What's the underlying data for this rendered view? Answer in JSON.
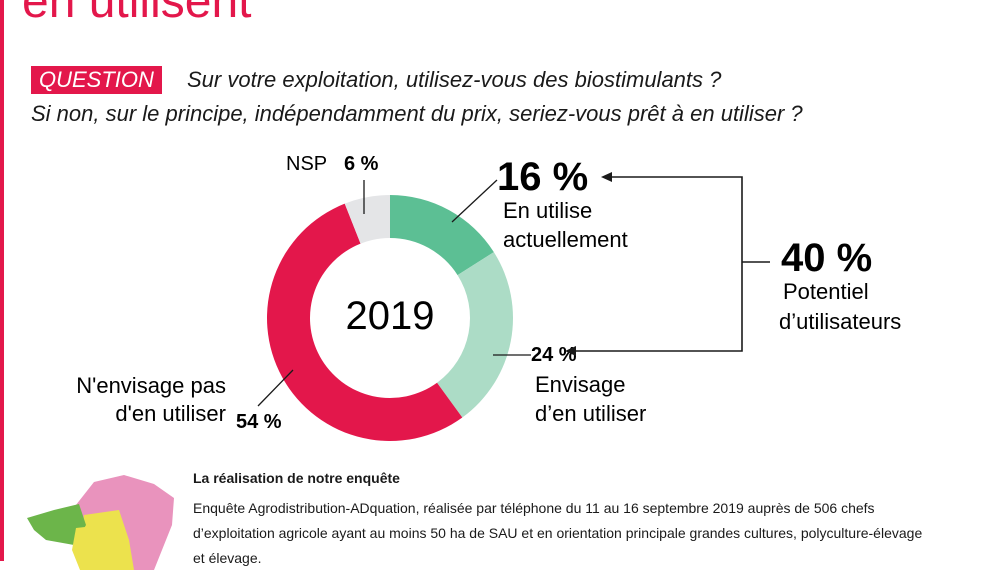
{
  "page": {
    "heading": "en utilisent",
    "question_tag": "QUESTION",
    "question_line1": "Sur votre exploitation, utilisez-vous des biostimulants ?",
    "question_line2": "Si non, sur le principe, indépendamment du prix, seriez-vous prêt à en utiliser ?"
  },
  "chart_data": {
    "type": "pie",
    "center_label": "2019",
    "slices": [
      {
        "label_line1": "En utilise",
        "label_line2": "actuellement",
        "value": 16,
        "display": "16 %",
        "color": "#5cbf94"
      },
      {
        "label_line1": "Envisage",
        "label_line2": "d’en utiliser",
        "value": 24,
        "display": "24 %",
        "color": "#acdcc6"
      },
      {
        "label_line1": "N'envisage pas",
        "label_line2": "d'en utiliser",
        "value": 54,
        "display": "54 %",
        "color": "#e3174b"
      },
      {
        "label_line1": "NSP",
        "label_line2": "",
        "value": 6,
        "display": "6 %",
        "color": "#e4e5e7"
      }
    ],
    "total": {
      "display": "40 %",
      "label_line1": "Potentiel",
      "label_line2": "d’utilisateurs"
    }
  },
  "survey": {
    "title": "La réalisation de notre enquête",
    "text": "Enquête Agrodistribution-ADquation, réalisée par téléphone du 11 au 16 septembre 2019 auprès de 506 chefs d’exploitation agricole ayant au moins 50 ha de SAU et en orientation principale grandes cultures, polyculture-élevage et élevage."
  }
}
